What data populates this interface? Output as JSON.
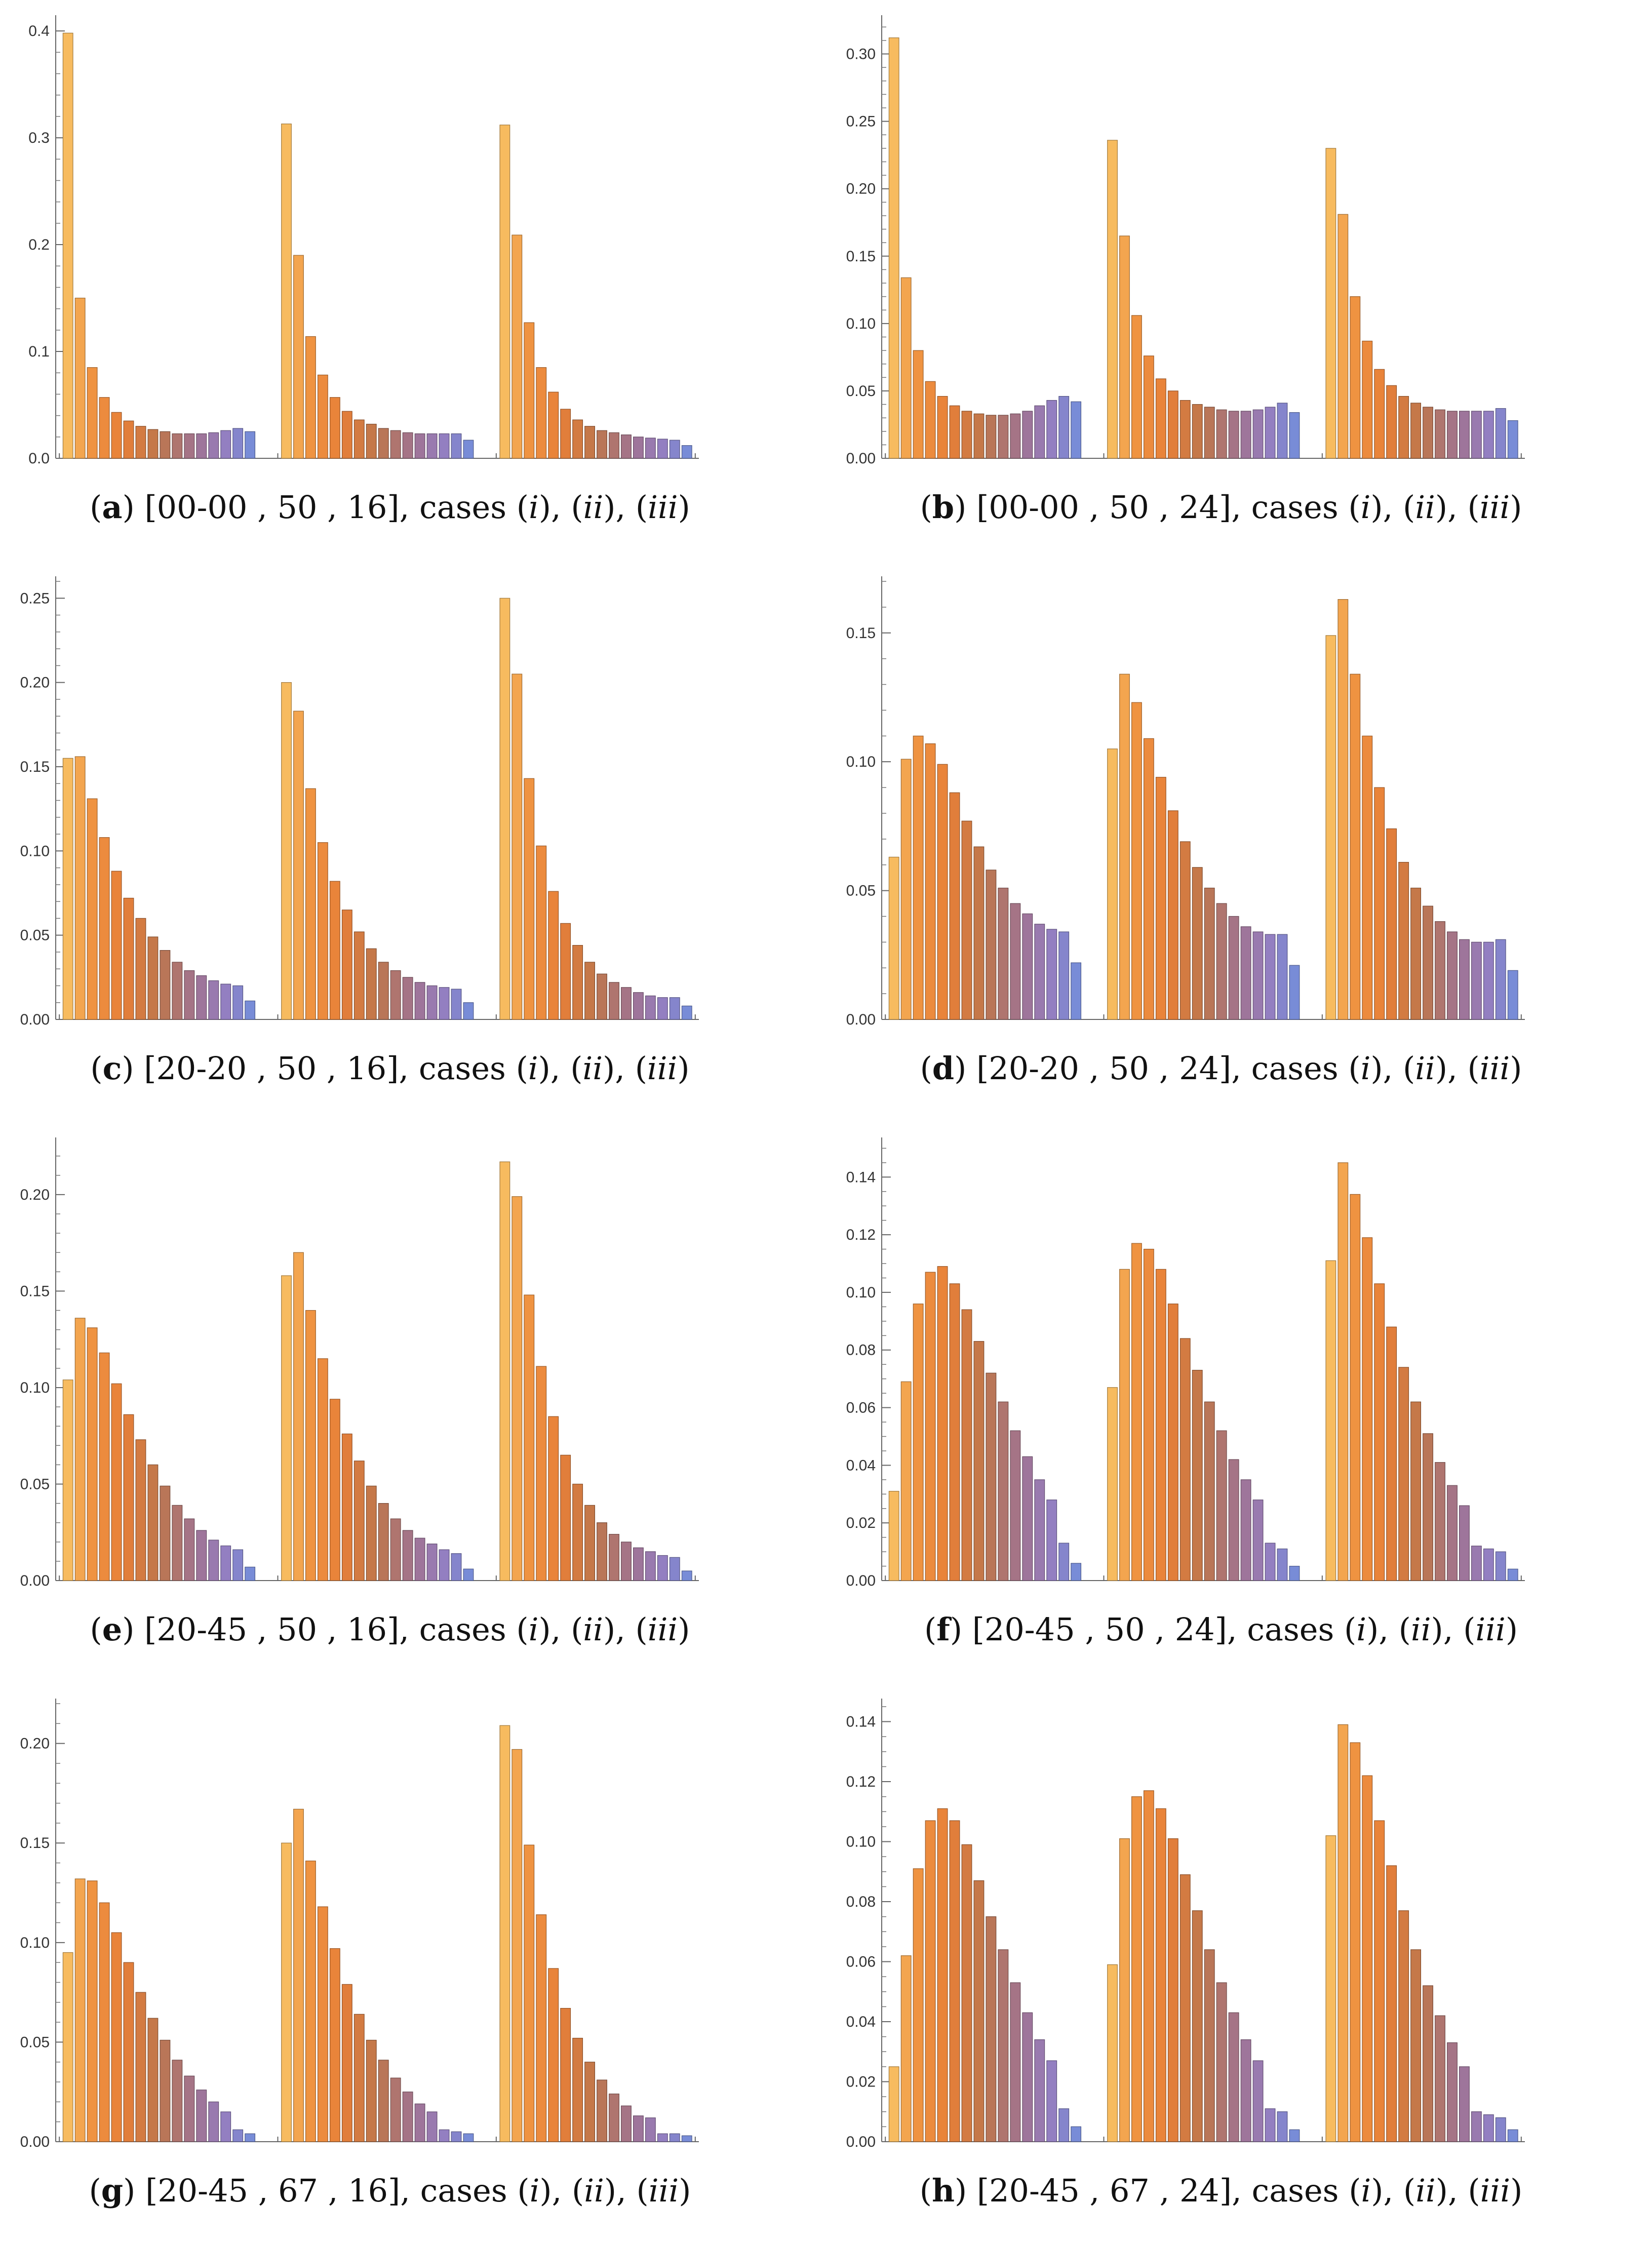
{
  "chart_data": [
    {
      "type": "bar",
      "panel": "a",
      "caption_text": "[00-00 , 50 , 16], cases",
      "cases": [
        "i",
        "ii",
        "iii"
      ],
      "ylim": [
        0,
        0.41
      ],
      "yticks": [
        "0.0",
        "0.1",
        "0.2",
        "0.3",
        "0.4"
      ],
      "ytick_values": [
        0.0,
        0.1,
        0.2,
        0.3,
        0.4
      ],
      "minor_step": 0.02,
      "groups": [
        {
          "name": "(i)",
          "values": [
            0.398,
            0.15,
            0.085,
            0.057,
            0.043,
            0.035,
            0.03,
            0.027,
            0.025,
            0.023,
            0.023,
            0.023,
            0.024,
            0.026,
            0.028,
            0.025
          ]
        },
        {
          "name": "(ii)",
          "values": [
            0.313,
            0.19,
            0.114,
            0.078,
            0.057,
            0.044,
            0.036,
            0.032,
            0.028,
            0.026,
            0.024,
            0.023,
            0.023,
            0.023,
            0.023,
            0.017
          ]
        },
        {
          "name": "(iii)",
          "values": [
            0.312,
            0.209,
            0.127,
            0.085,
            0.062,
            0.046,
            0.036,
            0.03,
            0.026,
            0.024,
            0.022,
            0.02,
            0.019,
            0.018,
            0.017,
            0.012
          ]
        }
      ]
    },
    {
      "type": "bar",
      "panel": "b",
      "caption_text": "[00-00 , 50 , 24], cases",
      "cases": [
        "i",
        "ii",
        "iii"
      ],
      "ylim": [
        0,
        0.325
      ],
      "yticks": [
        "0.00",
        "0.05",
        "0.10",
        "0.15",
        "0.20",
        "0.25",
        "0.30"
      ],
      "ytick_values": [
        0.0,
        0.05,
        0.1,
        0.15,
        0.2,
        0.25,
        0.3
      ],
      "minor_step": 0.01,
      "groups": [
        {
          "name": "(i)",
          "values": [
            0.312,
            0.134,
            0.08,
            0.057,
            0.046,
            0.039,
            0.035,
            0.033,
            0.032,
            0.032,
            0.033,
            0.035,
            0.039,
            0.043,
            0.046,
            0.042
          ]
        },
        {
          "name": "(ii)",
          "values": [
            0.236,
            0.165,
            0.106,
            0.076,
            0.059,
            0.05,
            0.043,
            0.04,
            0.038,
            0.036,
            0.035,
            0.035,
            0.036,
            0.038,
            0.041,
            0.034
          ]
        },
        {
          "name": "(iii)",
          "values": [
            0.23,
            0.181,
            0.12,
            0.087,
            0.066,
            0.054,
            0.046,
            0.041,
            0.038,
            0.036,
            0.035,
            0.035,
            0.035,
            0.035,
            0.037,
            0.028
          ]
        }
      ]
    },
    {
      "type": "bar",
      "panel": "c",
      "caption_text": "[20-20 , 50 , 16], cases",
      "cases": [
        "i",
        "ii",
        "iii"
      ],
      "ylim": [
        0,
        0.26
      ],
      "yticks": [
        "0.00",
        "0.05",
        "0.10",
        "0.15",
        "0.20",
        "0.25"
      ],
      "ytick_values": [
        0.0,
        0.05,
        0.1,
        0.15,
        0.2,
        0.25
      ],
      "minor_step": 0.01,
      "groups": [
        {
          "name": "(i)",
          "values": [
            0.155,
            0.156,
            0.131,
            0.108,
            0.088,
            0.072,
            0.06,
            0.049,
            0.041,
            0.034,
            0.029,
            0.026,
            0.023,
            0.021,
            0.02,
            0.011
          ]
        },
        {
          "name": "(ii)",
          "values": [
            0.2,
            0.183,
            0.137,
            0.105,
            0.082,
            0.065,
            0.052,
            0.042,
            0.034,
            0.029,
            0.025,
            0.022,
            0.02,
            0.019,
            0.018,
            0.01
          ]
        },
        {
          "name": "(iii)",
          "values": [
            0.25,
            0.205,
            0.143,
            0.103,
            0.076,
            0.057,
            0.044,
            0.034,
            0.027,
            0.022,
            0.019,
            0.016,
            0.014,
            0.013,
            0.013,
            0.008
          ]
        }
      ]
    },
    {
      "type": "bar",
      "panel": "d",
      "caption_text": "[20-20 , 50 , 24], cases",
      "cases": [
        "i",
        "ii",
        "iii"
      ],
      "ylim": [
        0,
        0.17
      ],
      "yticks": [
        "0.00",
        "0.05",
        "0.10",
        "0.15"
      ],
      "ytick_values": [
        0.0,
        0.05,
        0.1,
        0.15
      ],
      "minor_step": 0.01,
      "groups": [
        {
          "name": "(i)",
          "values": [
            0.063,
            0.101,
            0.11,
            0.107,
            0.099,
            0.088,
            0.077,
            0.067,
            0.058,
            0.051,
            0.045,
            0.041,
            0.037,
            0.035,
            0.034,
            0.022
          ]
        },
        {
          "name": "(ii)",
          "values": [
            0.105,
            0.134,
            0.123,
            0.109,
            0.094,
            0.081,
            0.069,
            0.059,
            0.051,
            0.045,
            0.04,
            0.036,
            0.034,
            0.033,
            0.033,
            0.021
          ]
        },
        {
          "name": "(iii)",
          "values": [
            0.149,
            0.163,
            0.134,
            0.11,
            0.09,
            0.074,
            0.061,
            0.051,
            0.044,
            0.038,
            0.034,
            0.031,
            0.03,
            0.03,
            0.031,
            0.019
          ]
        }
      ]
    },
    {
      "type": "bar",
      "panel": "e",
      "caption_text": "[20-45 , 50 , 16], cases",
      "cases": [
        "i",
        "ii",
        "iii"
      ],
      "ylim": [
        0,
        0.227
      ],
      "yticks": [
        "0.00",
        "0.05",
        "0.10",
        "0.15",
        "0.20"
      ],
      "ytick_values": [
        0.0,
        0.05,
        0.1,
        0.15,
        0.2
      ],
      "minor_step": 0.01,
      "groups": [
        {
          "name": "(i)",
          "values": [
            0.104,
            0.136,
            0.131,
            0.118,
            0.102,
            0.086,
            0.073,
            0.06,
            0.049,
            0.039,
            0.032,
            0.026,
            0.021,
            0.018,
            0.016,
            0.007
          ]
        },
        {
          "name": "(ii)",
          "values": [
            0.158,
            0.17,
            0.14,
            0.115,
            0.094,
            0.076,
            0.062,
            0.049,
            0.04,
            0.032,
            0.026,
            0.022,
            0.019,
            0.016,
            0.014,
            0.006
          ]
        },
        {
          "name": "(iii)",
          "values": [
            0.217,
            0.199,
            0.148,
            0.111,
            0.085,
            0.065,
            0.05,
            0.039,
            0.03,
            0.024,
            0.02,
            0.017,
            0.015,
            0.013,
            0.012,
            0.005
          ]
        }
      ]
    },
    {
      "type": "bar",
      "panel": "f",
      "caption_text": "[20-45 , 50 , 24], cases",
      "cases": [
        "i",
        "ii",
        "iii"
      ],
      "ylim": [
        0,
        0.152
      ],
      "yticks": [
        "0.00",
        "0.02",
        "0.04",
        "0.06",
        "0.08",
        "0.10",
        "0.12",
        "0.14"
      ],
      "ytick_values": [
        0.0,
        0.02,
        0.04,
        0.06,
        0.08,
        0.1,
        0.12,
        0.14
      ],
      "minor_step": 0.005,
      "groups": [
        {
          "name": "(i)",
          "values": [
            0.031,
            0.069,
            0.096,
            0.107,
            0.109,
            0.103,
            0.094,
            0.083,
            0.072,
            0.062,
            0.052,
            0.043,
            0.035,
            0.028,
            0.013,
            0.006
          ]
        },
        {
          "name": "(ii)",
          "values": [
            0.067,
            0.108,
            0.117,
            0.115,
            0.108,
            0.096,
            0.084,
            0.073,
            0.062,
            0.052,
            0.042,
            0.035,
            0.028,
            0.013,
            0.011,
            0.005
          ]
        },
        {
          "name": "(iii)",
          "values": [
            0.111,
            0.145,
            0.134,
            0.119,
            0.103,
            0.088,
            0.074,
            0.062,
            0.051,
            0.041,
            0.033,
            0.026,
            0.012,
            0.011,
            0.01,
            0.004
          ]
        }
      ]
    },
    {
      "type": "bar",
      "panel": "g",
      "caption_text": "[20-45 , 67 , 16], cases",
      "cases": [
        "i",
        "ii",
        "iii"
      ],
      "ylim": [
        0,
        0.22
      ],
      "yticks": [
        "0.00",
        "0.05",
        "0.10",
        "0.15",
        "0.20"
      ],
      "ytick_values": [
        0.0,
        0.05,
        0.1,
        0.15,
        0.2
      ],
      "minor_step": 0.01,
      "groups": [
        {
          "name": "(i)",
          "values": [
            0.095,
            0.132,
            0.131,
            0.12,
            0.105,
            0.09,
            0.075,
            0.062,
            0.051,
            0.041,
            0.033,
            0.026,
            0.02,
            0.015,
            0.006,
            0.004
          ]
        },
        {
          "name": "(ii)",
          "values": [
            0.15,
            0.167,
            0.141,
            0.118,
            0.097,
            0.079,
            0.064,
            0.051,
            0.041,
            0.032,
            0.025,
            0.019,
            0.015,
            0.006,
            0.005,
            0.004
          ]
        },
        {
          "name": "(iii)",
          "values": [
            0.209,
            0.197,
            0.149,
            0.114,
            0.087,
            0.067,
            0.052,
            0.04,
            0.031,
            0.024,
            0.018,
            0.013,
            0.012,
            0.004,
            0.004,
            0.003
          ]
        }
      ]
    },
    {
      "type": "bar",
      "panel": "h",
      "caption_text": "[20-45 , 67 , 24], cases",
      "cases": [
        "i",
        "ii",
        "iii"
      ],
      "ylim": [
        0,
        0.146
      ],
      "yticks": [
        "0.00",
        "0.02",
        "0.04",
        "0.06",
        "0.08",
        "0.10",
        "0.12",
        "0.14"
      ],
      "ytick_values": [
        0.0,
        0.02,
        0.04,
        0.06,
        0.08,
        0.1,
        0.12,
        0.14
      ],
      "minor_step": 0.005,
      "groups": [
        {
          "name": "(i)",
          "values": [
            0.025,
            0.062,
            0.091,
            0.107,
            0.111,
            0.107,
            0.099,
            0.087,
            0.075,
            0.064,
            0.053,
            0.043,
            0.034,
            0.027,
            0.011,
            0.005
          ]
        },
        {
          "name": "(ii)",
          "values": [
            0.059,
            0.101,
            0.115,
            0.117,
            0.111,
            0.101,
            0.089,
            0.077,
            0.064,
            0.053,
            0.043,
            0.034,
            0.027,
            0.011,
            0.01,
            0.004
          ]
        },
        {
          "name": "(iii)",
          "values": [
            0.102,
            0.139,
            0.133,
            0.122,
            0.107,
            0.092,
            0.077,
            0.064,
            0.052,
            0.042,
            0.033,
            0.025,
            0.01,
            0.009,
            0.008,
            0.004
          ]
        }
      ]
    }
  ]
}
